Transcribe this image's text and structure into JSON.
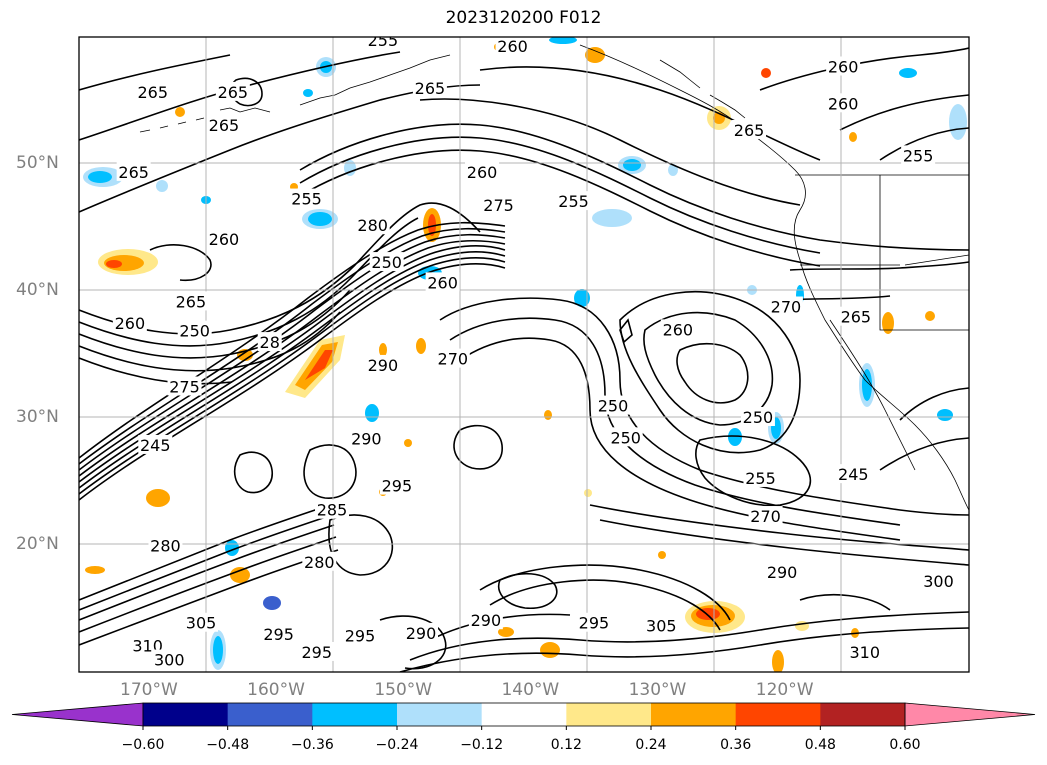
{
  "title": "2023120200 F012",
  "lat_labels": [
    {
      "text": "50°N",
      "lat": 50
    },
    {
      "text": "40°N",
      "lat": 40
    },
    {
      "text": "30°N",
      "lat": 30
    },
    {
      "text": "20°N",
      "lat": 20
    }
  ],
  "lon_labels": [
    {
      "text": "170°W",
      "lon": -170
    },
    {
      "text": "160°W",
      "lon": -160
    },
    {
      "text": "150°W",
      "lon": -150
    },
    {
      "text": "140°W",
      "lon": -140
    },
    {
      "text": "130°W",
      "lon": -130
    },
    {
      "text": "120°W",
      "lon": -120
    }
  ],
  "map_extent": {
    "lon": [
      -175.5,
      -105.5
    ],
    "lat": [
      10,
      60
    ]
  },
  "colorbar": {
    "ticks": [
      "−0.60",
      "−0.48",
      "−0.36",
      "−0.24",
      "−0.12",
      "0.12",
      "0.24",
      "0.36",
      "0.48",
      "0.60"
    ],
    "colors": [
      "#9932cc",
      "#00008b",
      "#3a5fcd",
      "#00bfff",
      "#afe0fb",
      "#ffffff",
      "#ffe88a",
      "#ffa500",
      "#ff4500",
      "#b22222",
      "#ff88a8"
    ]
  },
  "contour_labels": [
    {
      "text": "255",
      "lon": -151.6,
      "lat": 59.7
    },
    {
      "text": "260",
      "lon": -141.4,
      "lat": 59.2
    },
    {
      "text": "260",
      "lon": -115.4,
      "lat": 57.6
    },
    {
      "text": "265",
      "lon": -169.7,
      "lat": 55.6
    },
    {
      "text": "265",
      "lon": -163.4,
      "lat": 55.6
    },
    {
      "text": "265",
      "lon": -147.9,
      "lat": 55.9
    },
    {
      "text": "260",
      "lon": -115.4,
      "lat": 54.7
    },
    {
      "text": "265",
      "lon": -164.1,
      "lat": 53.0
    },
    {
      "text": "265",
      "lon": -122.8,
      "lat": 52.6
    },
    {
      "text": "255",
      "lon": -109.5,
      "lat": 50.6
    },
    {
      "text": "265",
      "lon": -171.2,
      "lat": 49.3
    },
    {
      "text": "260",
      "lon": -143.8,
      "lat": 49.3
    },
    {
      "text": "275",
      "lon": -142.5,
      "lat": 46.7
    },
    {
      "text": "255",
      "lon": -157.6,
      "lat": 47.2
    },
    {
      "text": "255",
      "lon": -136.6,
      "lat": 47.0
    },
    {
      "text": "260",
      "lon": -164.1,
      "lat": 44.0
    },
    {
      "text": "280",
      "lon": -152.4,
      "lat": 45.1
    },
    {
      "text": "250",
      "lon": -151.3,
      "lat": 42.2
    },
    {
      "text": "260",
      "lon": -146.9,
      "lat": 40.6
    },
    {
      "text": "265",
      "lon": -166.7,
      "lat": 39.1
    },
    {
      "text": "260",
      "lon": -171.5,
      "lat": 37.4
    },
    {
      "text": "250",
      "lon": -166.4,
      "lat": 36.8
    },
    {
      "text": "270",
      "lon": -119.9,
      "lat": 38.7
    },
    {
      "text": "265",
      "lon": -114.4,
      "lat": 37.9
    },
    {
      "text": "260",
      "lon": -128.4,
      "lat": 36.9
    },
    {
      "text": "28",
      "lon": -160.5,
      "lat": 35.9
    },
    {
      "text": "290",
      "lon": -151.6,
      "lat": 34.1
    },
    {
      "text": "270",
      "lon": -146.1,
      "lat": 34.6
    },
    {
      "text": "275",
      "lon": -167.2,
      "lat": 32.4
    },
    {
      "text": "250",
      "lon": -133.5,
      "lat": 30.9
    },
    {
      "text": "250",
      "lon": -122.1,
      "lat": 30.0
    },
    {
      "text": "250",
      "lon": -132.5,
      "lat": 28.4
    },
    {
      "text": "290",
      "lon": -152.9,
      "lat": 28.3
    },
    {
      "text": "245",
      "lon": -169.5,
      "lat": 27.8
    },
    {
      "text": "295",
      "lon": -150.5,
      "lat": 24.6
    },
    {
      "text": "255",
      "lon": -121.9,
      "lat": 25.2
    },
    {
      "text": "245",
      "lon": -114.6,
      "lat": 25.5
    },
    {
      "text": "285",
      "lon": -155.6,
      "lat": 22.7
    },
    {
      "text": "270",
      "lon": -121.5,
      "lat": 22.2
    },
    {
      "text": "280",
      "lon": -168.7,
      "lat": 19.9
    },
    {
      "text": "280",
      "lon": -156.6,
      "lat": 18.6
    },
    {
      "text": "290",
      "lon": -120.2,
      "lat": 17.8
    },
    {
      "text": "300",
      "lon": -107.9,
      "lat": 17.1
    },
    {
      "text": "305",
      "lon": -165.9,
      "lat": 13.8
    },
    {
      "text": "290",
      "lon": -143.5,
      "lat": 14.0
    },
    {
      "text": "295",
      "lon": -159.8,
      "lat": 12.9
    },
    {
      "text": "295",
      "lon": -153.4,
      "lat": 12.8
    },
    {
      "text": "290",
      "lon": -148.6,
      "lat": 13.0
    },
    {
      "text": "295",
      "lon": -135.0,
      "lat": 13.8
    },
    {
      "text": "305",
      "lon": -129.7,
      "lat": 13.6
    },
    {
      "text": "310",
      "lon": -170.1,
      "lat": 12.0
    },
    {
      "text": "300",
      "lon": -168.4,
      "lat": 10.9
    },
    {
      "text": "295",
      "lon": -156.8,
      "lat": 11.5
    },
    {
      "text": "310",
      "lon": -113.7,
      "lat": 11.5
    }
  ]
}
